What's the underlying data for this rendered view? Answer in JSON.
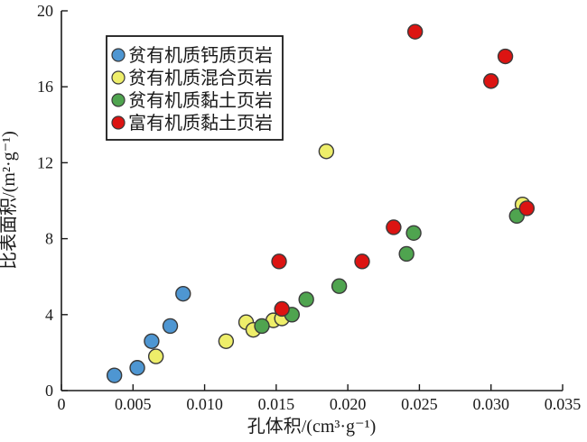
{
  "figure": {
    "background_color": "#ffffff",
    "axis_color": "#1a1a1a",
    "marker_edge_color": "#3a3a3a"
  },
  "chart_data": {
    "type": "scatter",
    "title": "",
    "xlabel": "孔体积/(cm³·g⁻¹)",
    "ylabel": "比表面积/(m²·g⁻¹)",
    "xlim": [
      0,
      0.035
    ],
    "ylim": [
      0,
      20
    ],
    "x_ticks": [
      0,
      0.005,
      0.01,
      0.015,
      0.02,
      0.025,
      0.03,
      0.035
    ],
    "x_tick_labels": [
      "0",
      "0.005",
      "0.010",
      "0.015",
      "0.020",
      "0.025",
      "0.030",
      "0.035"
    ],
    "y_ticks": [
      0,
      4,
      8,
      12,
      16,
      20
    ],
    "y_tick_labels": [
      "0",
      "4",
      "8",
      "12",
      "16",
      "20"
    ],
    "grid": false,
    "legend_position": "upper-left-inside",
    "marker_shape": "circle",
    "series": [
      {
        "name": "贫有机质钙质页岩",
        "color": "#4e96d2",
        "points": [
          [
            0.0037,
            0.8
          ],
          [
            0.0053,
            1.2
          ],
          [
            0.0063,
            2.6
          ],
          [
            0.0076,
            3.4
          ],
          [
            0.0085,
            5.1
          ]
        ]
      },
      {
        "name": "贫有机质混合页岩",
        "color": "#eeee6a",
        "points": [
          [
            0.0066,
            1.8
          ],
          [
            0.0115,
            2.6
          ],
          [
            0.0129,
            3.6
          ],
          [
            0.0134,
            3.2
          ],
          [
            0.0148,
            3.7
          ],
          [
            0.0154,
            3.8
          ],
          [
            0.0185,
            12.6
          ],
          [
            0.0322,
            9.8
          ]
        ]
      },
      {
        "name": "贫有机质黏土页岩",
        "color": "#4fa44f",
        "points": [
          [
            0.014,
            3.4
          ],
          [
            0.0161,
            4.0
          ],
          [
            0.0171,
            4.8
          ],
          [
            0.0194,
            5.5
          ],
          [
            0.0241,
            7.2
          ],
          [
            0.0246,
            8.3
          ],
          [
            0.0318,
            9.2
          ]
        ]
      },
      {
        "name": "富有机质黏土页岩",
        "color": "#dc1412",
        "points": [
          [
            0.0154,
            4.3
          ],
          [
            0.0152,
            6.8
          ],
          [
            0.021,
            6.8
          ],
          [
            0.0232,
            8.6
          ],
          [
            0.0247,
            18.9
          ],
          [
            0.03,
            16.3
          ],
          [
            0.031,
            17.6
          ],
          [
            0.0325,
            9.6
          ]
        ]
      }
    ]
  }
}
